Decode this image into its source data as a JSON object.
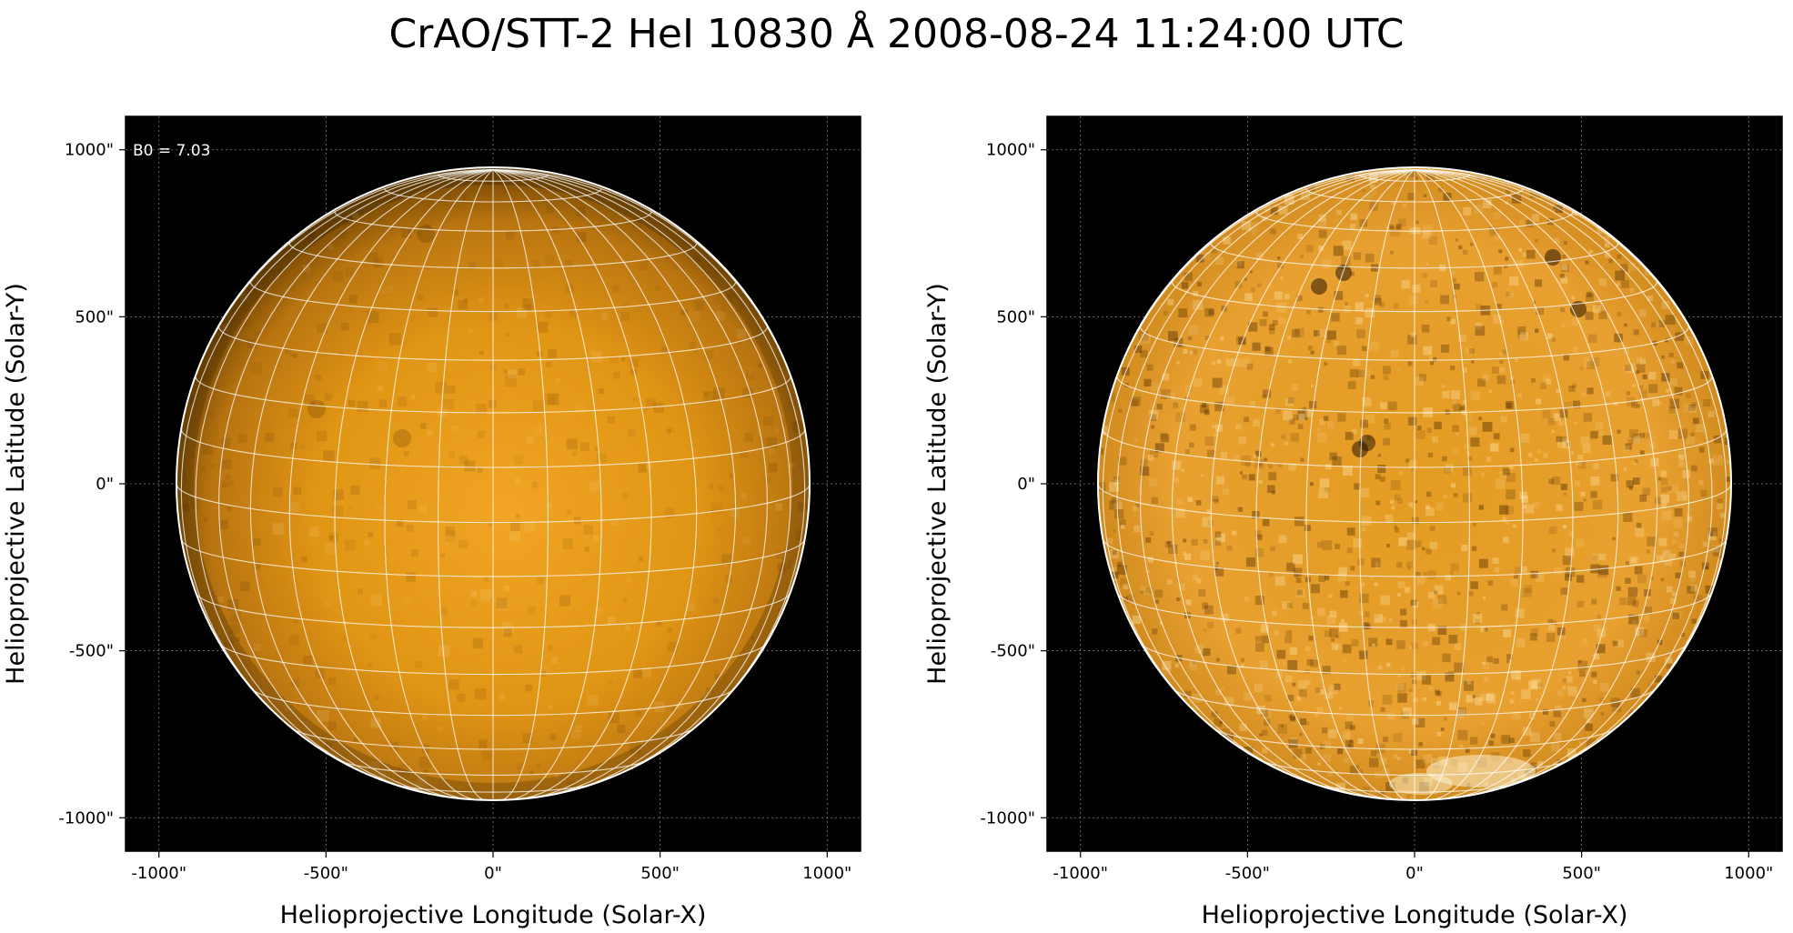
{
  "title": "CrAO/STT-2 HeI 10830 Å 2008-08-24 11:24:00 UTC",
  "colors": {
    "background": "#000000",
    "disk_center": "#f0a020",
    "disk_mid": "#d08510",
    "disk_limb": "#6e4200",
    "grid_line": "#ffffff",
    "limb_circle": "#ffffff",
    "frame_grid": "#808080"
  },
  "panels": [
    {
      "annotation": "B0 = 7.03",
      "xlabel": "Helioprojective Longitude (Solar-X)",
      "ylabel": "Helioprojective Latitude (Solar-Y)",
      "xticks": [
        "-1000\"",
        "-500\"",
        "0\"",
        "500\"",
        "1000\""
      ],
      "yticks": [
        "1000\"",
        "500\"",
        "0\"",
        "-500\"",
        "-1000\""
      ],
      "style": "smooth"
    },
    {
      "annotation": "",
      "xlabel": "Helioprojective Longitude (Solar-X)",
      "ylabel": "Helioprojective Latitude (Solar-Y)",
      "xticks": [
        "-1000\"",
        "-500\"",
        "0\"",
        "500\"",
        "1000\""
      ],
      "yticks": [
        "1000\"",
        "500\"",
        "0\"",
        "-500\"",
        "-1000\""
      ],
      "style": "enhanced"
    }
  ]
}
